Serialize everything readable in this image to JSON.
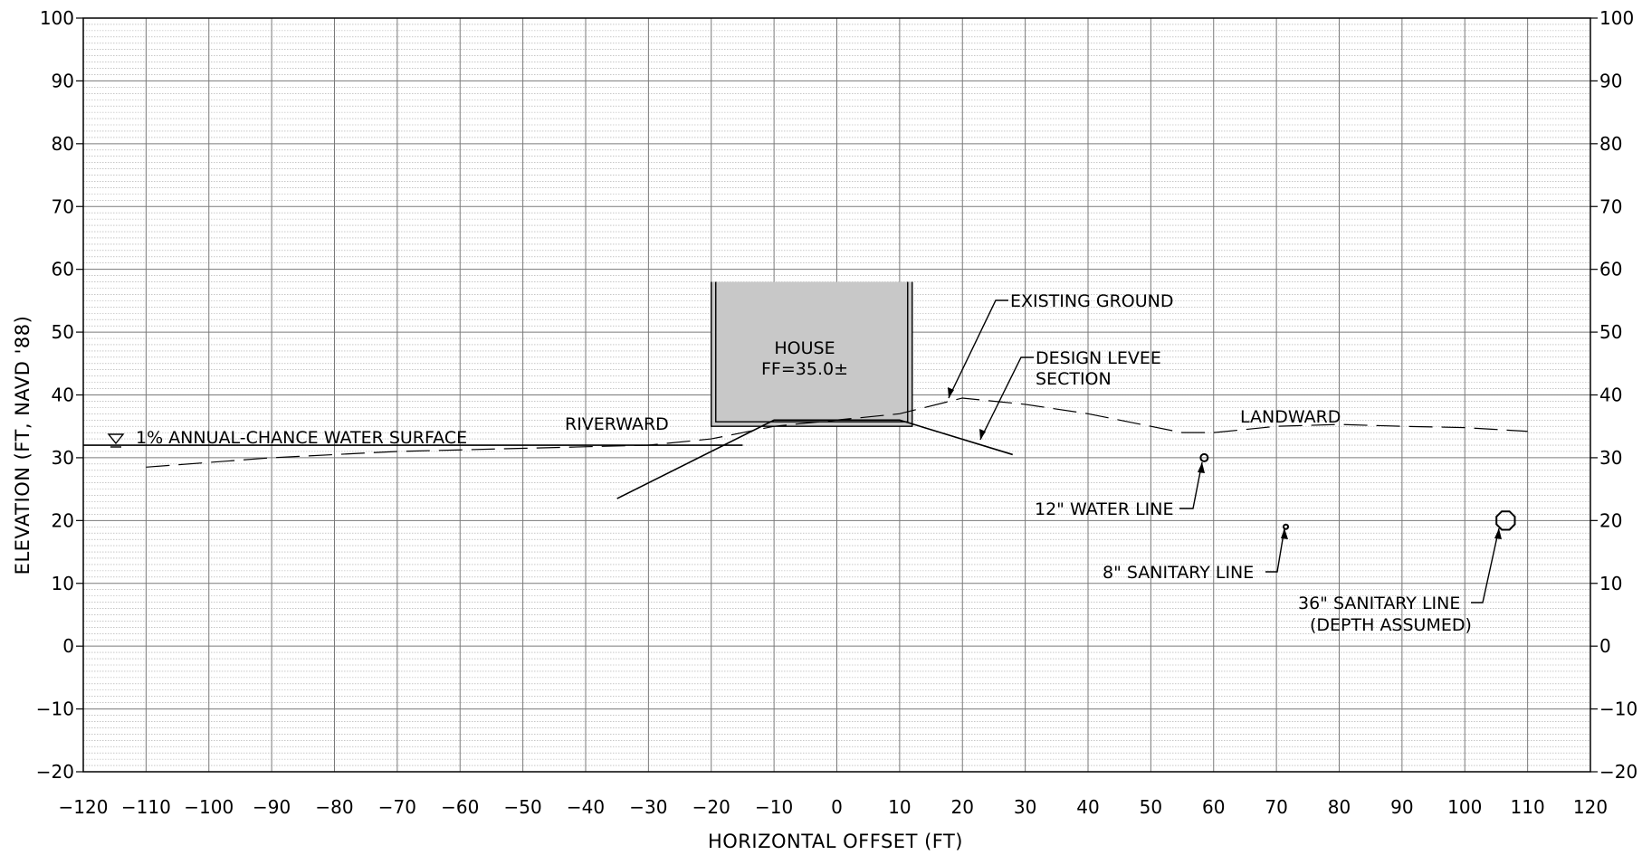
{
  "chart_data": {
    "type": "line",
    "title": "",
    "xlabel": "HORIZONTAL OFFSET (FT)",
    "ylabel": "ELEVATION (FT, NAVD '88)",
    "xlim": [
      -120,
      120
    ],
    "ylim": [
      -20,
      100
    ],
    "x_ticks": [
      -120,
      -110,
      -100,
      -90,
      -80,
      -70,
      -60,
      -50,
      -40,
      -30,
      -20,
      -10,
      0,
      10,
      20,
      30,
      40,
      50,
      60,
      70,
      80,
      90,
      100,
      110,
      120
    ],
    "y_ticks": [
      -20,
      -10,
      0,
      10,
      20,
      30,
      40,
      50,
      60,
      70,
      80,
      90,
      100
    ],
    "grid": true,
    "series": [
      {
        "name": "EXISTING GROUND",
        "style": "dashed",
        "points": [
          [
            -110,
            28.5
          ],
          [
            -90,
            30
          ],
          [
            -70,
            31
          ],
          [
            -50,
            31.5
          ],
          [
            -30,
            32
          ],
          [
            -20,
            33
          ],
          [
            -10,
            35
          ],
          [
            0,
            36
          ],
          [
            10,
            37
          ],
          [
            20,
            39.5
          ],
          [
            30,
            38.5
          ],
          [
            40,
            37
          ],
          [
            50,
            35
          ],
          [
            55,
            34
          ],
          [
            60,
            34
          ],
          [
            70,
            35
          ],
          [
            80,
            35.3
          ],
          [
            90,
            35
          ],
          [
            100,
            34.8
          ],
          [
            110,
            34.2
          ]
        ]
      },
      {
        "name": "DESIGN LEVEE SECTION",
        "style": "solid",
        "points": [
          [
            -35,
            23.5
          ],
          [
            -10,
            36
          ],
          [
            10,
            36
          ],
          [
            28,
            30.5
          ]
        ]
      },
      {
        "name": "1% ANNUAL-CHANCE WATER SURFACE",
        "style": "solid",
        "points": [
          [
            -120,
            32
          ],
          [
            -15,
            32
          ]
        ]
      }
    ],
    "house": {
      "label_line1": "HOUSE",
      "label_line2": "FF=35.0±",
      "x_range": [
        -20,
        12
      ],
      "y_range": [
        35,
        58
      ],
      "fill": "#c8c8c8"
    },
    "utilities": [
      {
        "label": "12\" WATER LINE",
        "x": 58.5,
        "y": 30,
        "size": "small"
      },
      {
        "label": "8\" SANITARY LINE",
        "x": 71.5,
        "y": 19,
        "size": "tiny"
      },
      {
        "label": "36\" SANITARY LINE",
        "label_line2": "(DEPTH ASSUMED)",
        "x": 106.5,
        "y": 20,
        "size": "large"
      }
    ],
    "annotations": {
      "existing_ground": "EXISTING GROUND",
      "design_levee_line1": "DESIGN LEVEE",
      "design_levee_line2": "SECTION",
      "riverward": "RIVERWARD",
      "landward": "LANDWARD",
      "water_surface": "1% ANNUAL-CHANCE WATER SURFACE"
    }
  }
}
